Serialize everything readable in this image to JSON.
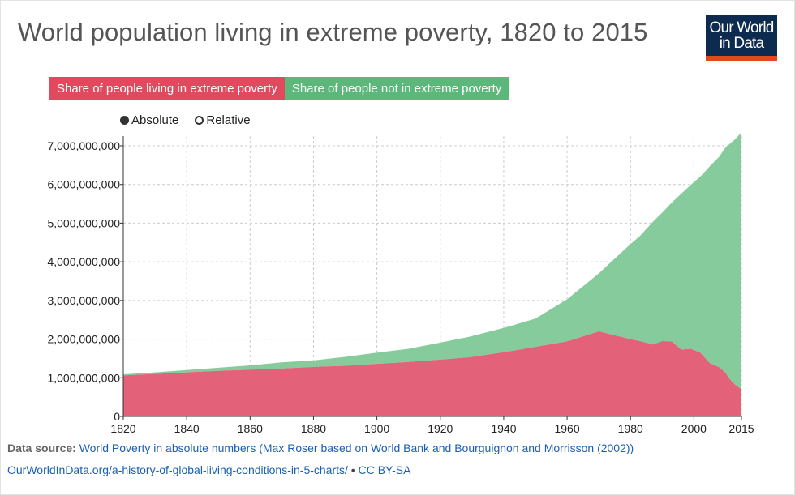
{
  "title": "World population living in extreme poverty, 1820 to 2015",
  "logo": {
    "line1": "Our World",
    "line2": "in Data"
  },
  "legend": [
    {
      "label": "Share of people living in extreme poverty",
      "color": "#e0495e"
    },
    {
      "label": "Share of people not in extreme poverty",
      "color": "#5cb87a"
    }
  ],
  "toggle": {
    "absolute": "Absolute",
    "relative": "Relative",
    "selected": "Absolute"
  },
  "colors": {
    "poverty": "#e36179",
    "not_poverty": "#86cb9b",
    "grid": "#cccccc",
    "axis": "#333333"
  },
  "footer": {
    "source_label": "Data source:",
    "source_text": "World Poverty in absolute numbers (Max Roser based on World Bank and Bourguignon and Morrisson (2002))",
    "url": "OurWorldInData.org/a-history-of-global-living-conditions-in-5-charts/",
    "separator": " • ",
    "license": "CC BY-SA"
  },
  "chart_data": {
    "type": "area",
    "stacked": true,
    "x": [
      1820,
      1830,
      1840,
      1850,
      1860,
      1870,
      1880,
      1890,
      1900,
      1910,
      1920,
      1929,
      1940,
      1950,
      1960,
      1970,
      1980,
      1983,
      1987,
      1990,
      1993,
      1996,
      1999,
      2002,
      2005,
      2008,
      2010,
      2011,
      2012,
      2013,
      2015
    ],
    "series": [
      {
        "name": "Share of people living in extreme poverty",
        "values": [
          1060000000,
          1100000000,
          1140000000,
          1180000000,
          1210000000,
          1240000000,
          1280000000,
          1310000000,
          1360000000,
          1410000000,
          1470000000,
          1530000000,
          1660000000,
          1800000000,
          1940000000,
          2200000000,
          2000000000,
          1950000000,
          1860000000,
          1950000000,
          1940000000,
          1730000000,
          1750000000,
          1650000000,
          1380000000,
          1270000000,
          1130000000,
          1000000000,
          900000000,
          820000000,
          705000000
        ]
      },
      {
        "name": "Share of people not in extreme poverty",
        "values": [
          30000000,
          40000000,
          60000000,
          80000000,
          110000000,
          160000000,
          170000000,
          230000000,
          290000000,
          340000000,
          440000000,
          530000000,
          630000000,
          730000000,
          1090000000,
          1500000000,
          2460000000,
          2720000000,
          3170000000,
          3320000000,
          3590000000,
          4030000000,
          4240000000,
          4550000000,
          5090000000,
          5450000000,
          5830000000,
          6030000000,
          6200000000,
          6350000000,
          6640000000
        ]
      }
    ],
    "xlim": [
      1820,
      2015
    ],
    "ylim": [
      0,
      7000000000
    ],
    "xticks": [
      1820,
      1840,
      1860,
      1880,
      1900,
      1920,
      1940,
      1960,
      1980,
      2000,
      2015
    ],
    "yticks": [
      0,
      1000000000,
      2000000000,
      3000000000,
      4000000000,
      5000000000,
      6000000000,
      7000000000
    ],
    "ytick_labels": [
      "0",
      "1,000,000,000",
      "2,000,000,000",
      "3,000,000,000",
      "4,000,000,000",
      "5,000,000,000",
      "6,000,000,000",
      "7,000,000,000"
    ],
    "grid": true,
    "legend_position": "top-left"
  }
}
